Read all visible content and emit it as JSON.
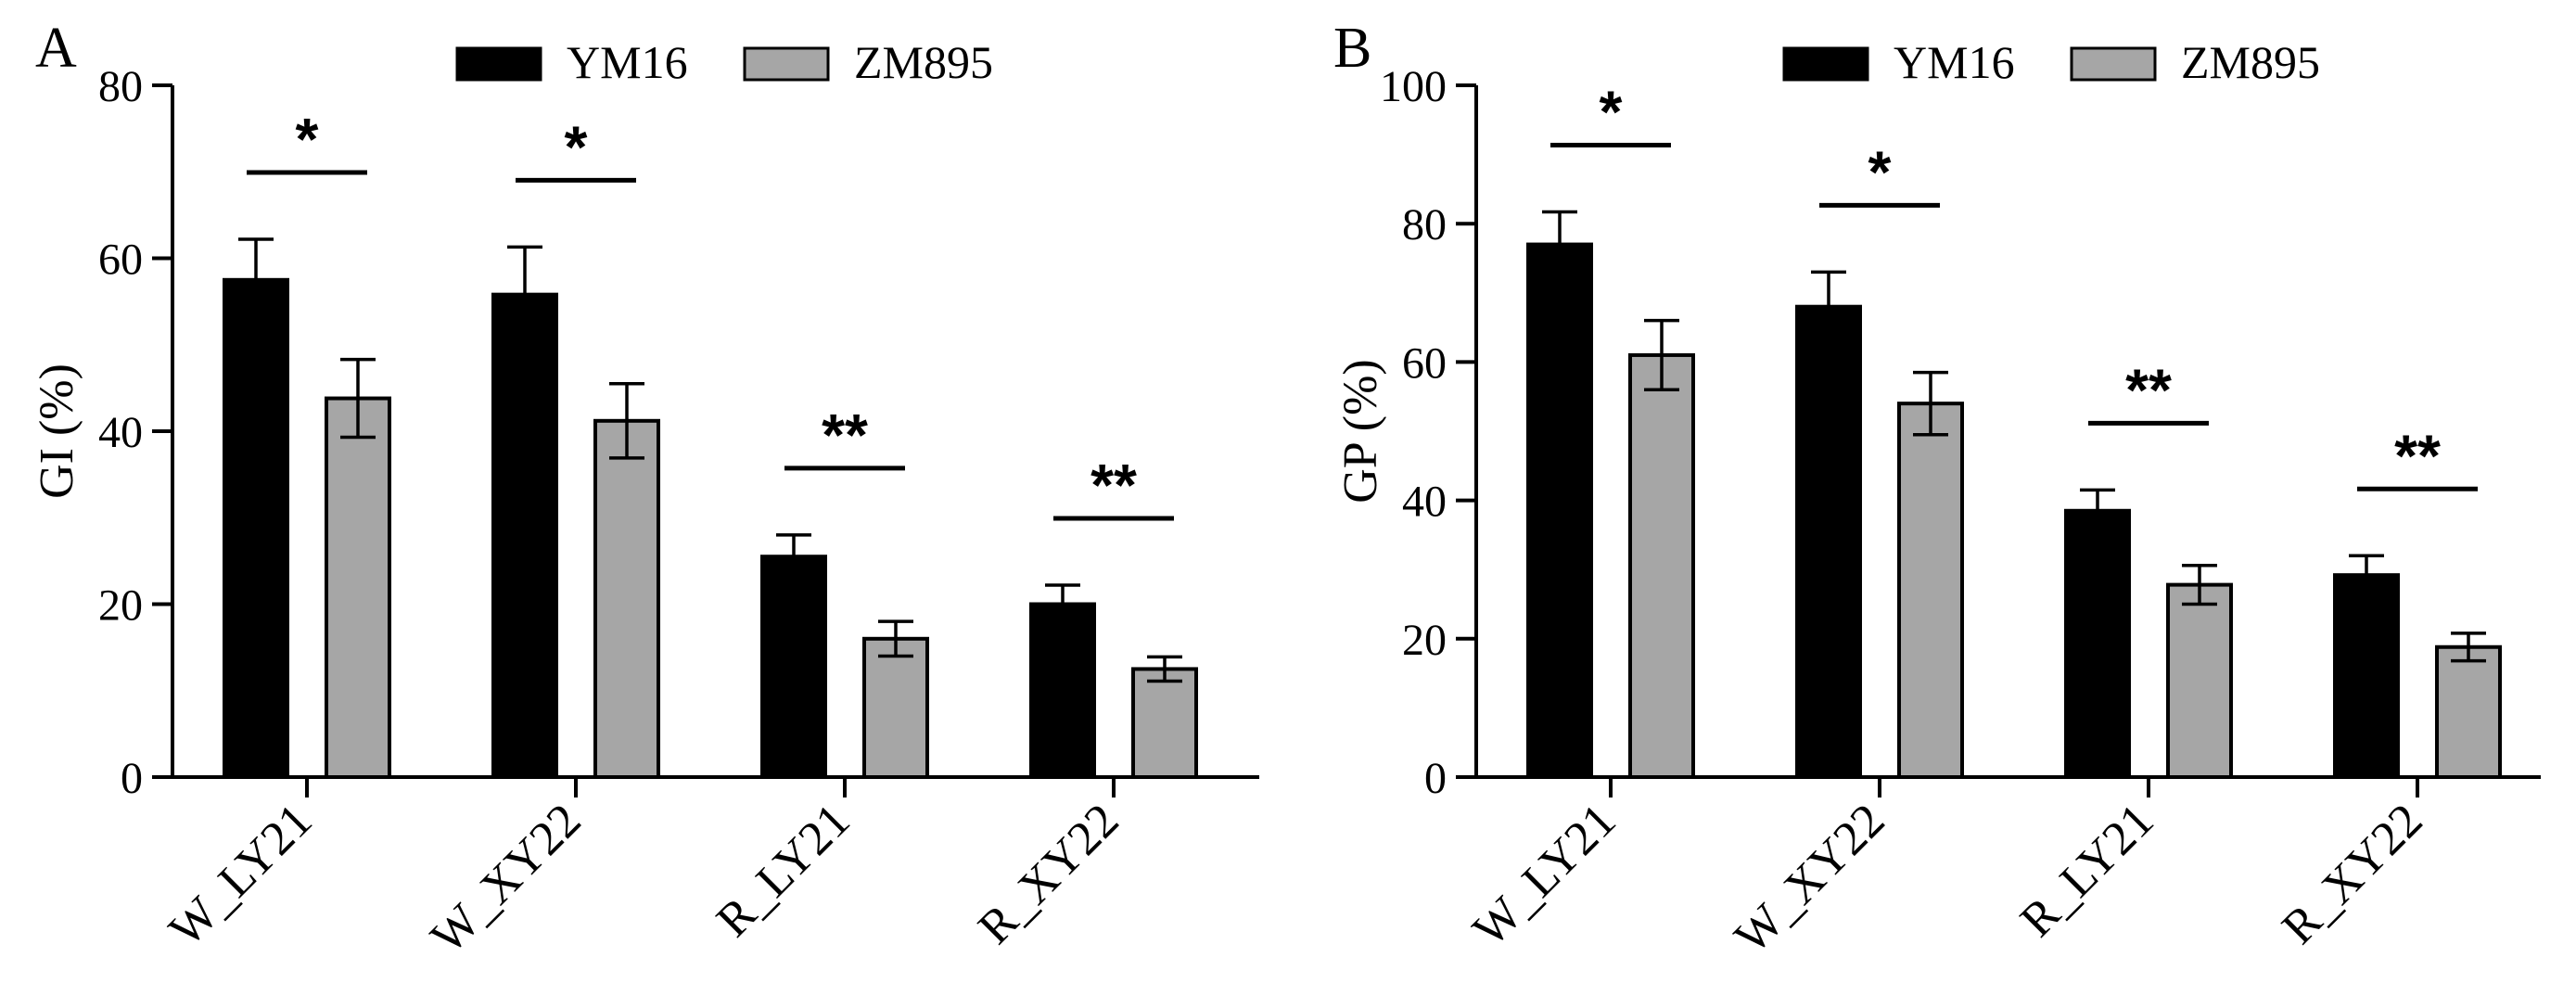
{
  "chart_data": [
    {
      "panel_label": "A",
      "type": "bar",
      "ylabel": "GI (%)",
      "ylim": [
        0,
        80
      ],
      "yticks": [
        0,
        20,
        40,
        60,
        80
      ],
      "categories": [
        "W_LY21",
        "W_XY22",
        "R_LY21",
        "R_XY22"
      ],
      "series": [
        {
          "name": "YM16",
          "color": "#000000",
          "values": [
            57.5,
            55.8,
            25.5,
            20.0
          ],
          "errors": [
            4.7,
            5.5,
            2.5,
            2.2
          ]
        },
        {
          "name": "ZM895",
          "color": "#a6a6a6",
          "values": [
            43.8,
            41.2,
            16.0,
            12.5
          ],
          "errors": [
            4.5,
            4.3,
            2.0,
            1.4
          ]
        }
      ],
      "significance": [
        "*",
        "*",
        "**",
        "**"
      ]
    },
    {
      "panel_label": "B",
      "type": "bar",
      "ylabel": "GP (%)",
      "ylim": [
        0,
        100
      ],
      "yticks": [
        0,
        20,
        40,
        60,
        80,
        100
      ],
      "categories": [
        "W_LY21",
        "W_XY22",
        "R_LY21",
        "R_XY22"
      ],
      "series": [
        {
          "name": "YM16",
          "color": "#000000",
          "values": [
            77.0,
            68.0,
            38.5,
            29.2
          ],
          "errors": [
            4.7,
            5.0,
            3.0,
            2.8
          ]
        },
        {
          "name": "ZM895",
          "color": "#a6a6a6",
          "values": [
            61.0,
            54.0,
            27.8,
            18.8
          ],
          "errors": [
            5.0,
            4.5,
            2.8,
            2.0
          ]
        }
      ],
      "significance": [
        "*",
        "*",
        "**",
        "**"
      ]
    }
  ]
}
